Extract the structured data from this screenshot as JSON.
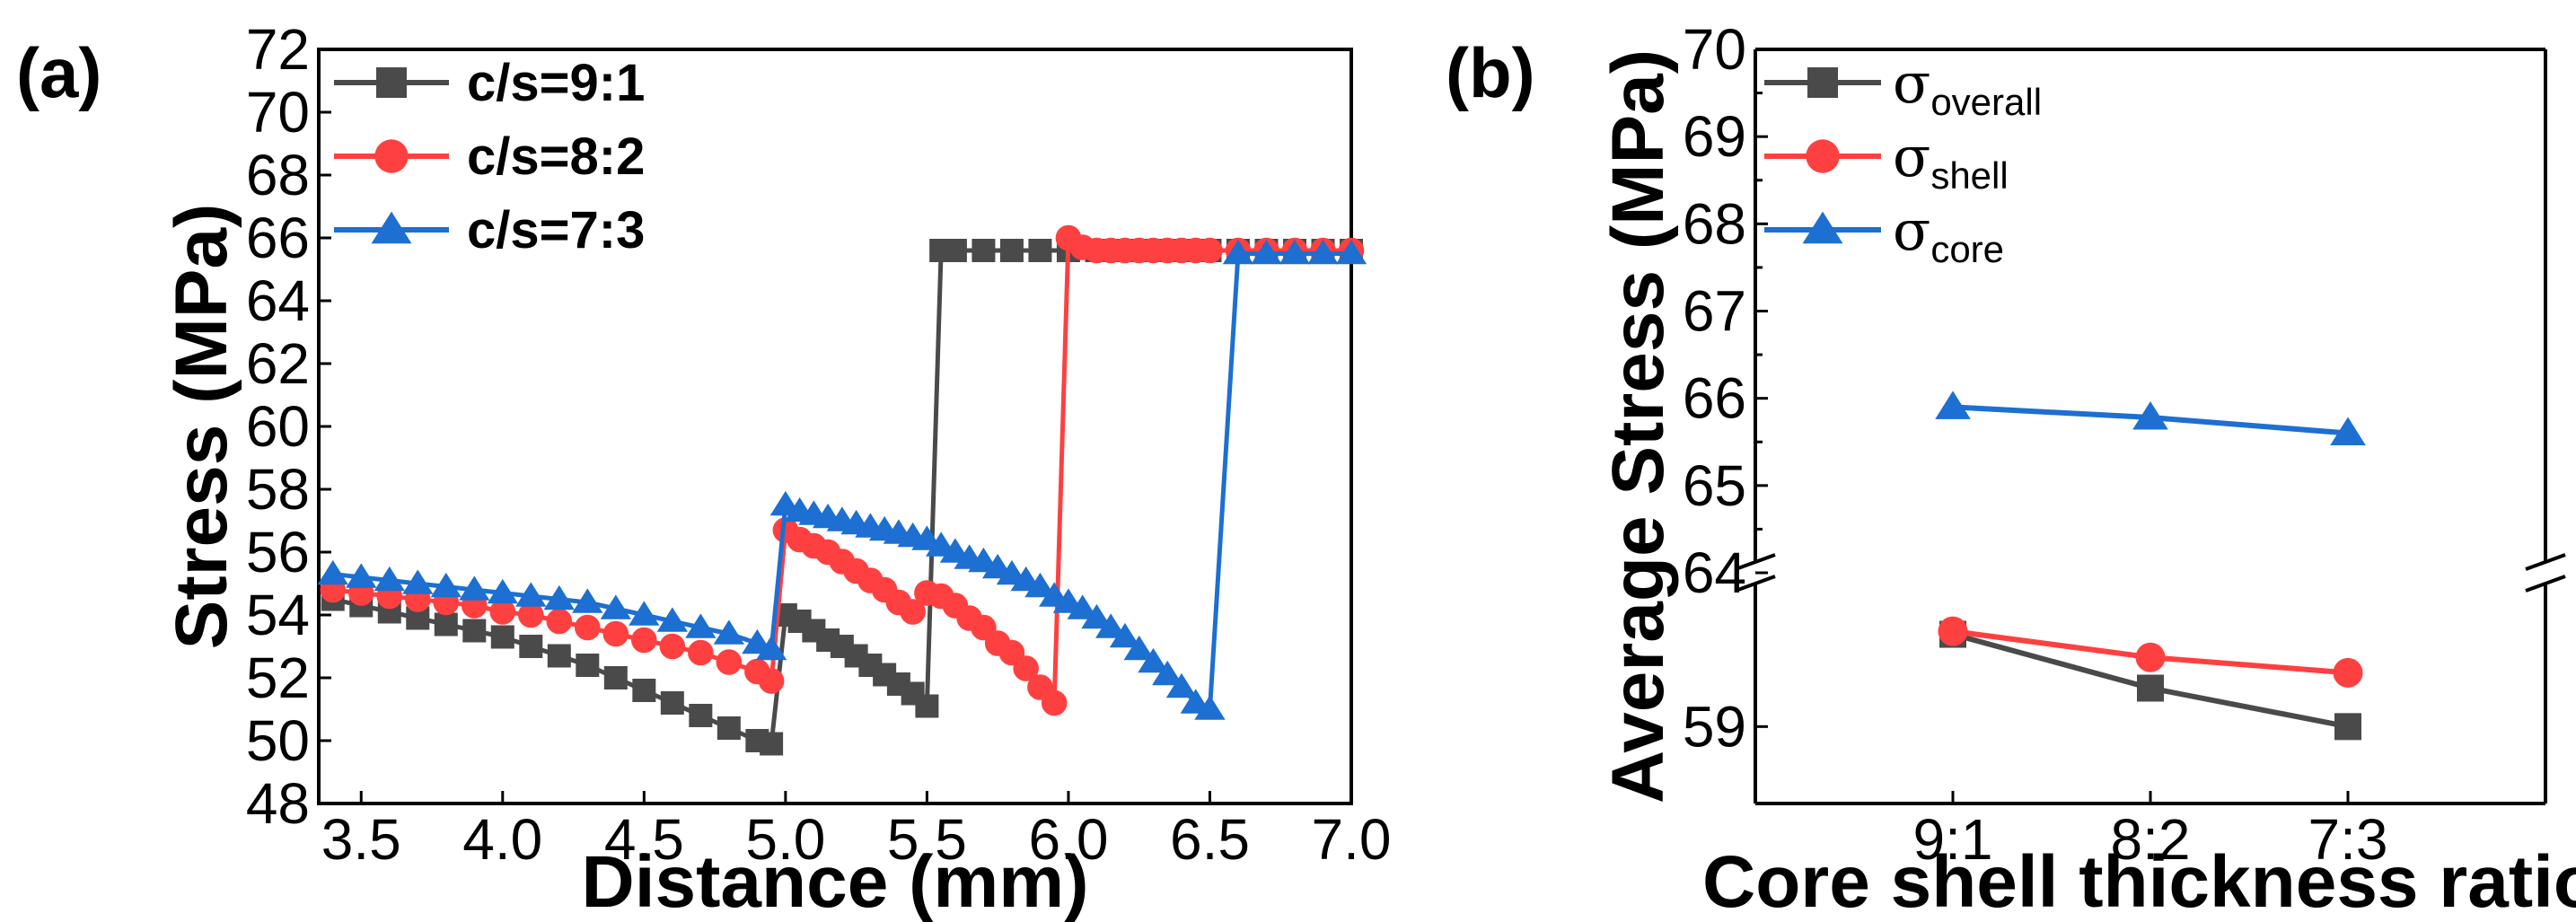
{
  "chart_data": [
    {
      "panel": "(a)",
      "type": "line",
      "xlabel": "Distance (mm)",
      "ylabel": "Stress (MPa)",
      "xlim": [
        3.35,
        7.0
      ],
      "ylim": [
        48,
        72
      ],
      "xticks": [
        "3.5",
        "4.0",
        "4.5",
        "5.0",
        "5.5",
        "6.0",
        "6.5",
        "7.0"
      ],
      "yticks": [
        "48",
        "50",
        "52",
        "54",
        "56",
        "58",
        "60",
        "62",
        "64",
        "66",
        "68",
        "70",
        "72"
      ],
      "legend": "top-left",
      "series": [
        {
          "name": "c/s=9:1",
          "color": "#4a4a4a",
          "marker": "square",
          "x": [
            3.4,
            3.5,
            3.6,
            3.7,
            3.8,
            3.9,
            4.0,
            4.1,
            4.2,
            4.3,
            4.4,
            4.5,
            4.6,
            4.7,
            4.8,
            4.9,
            4.95,
            5.0,
            5.05,
            5.1,
            5.15,
            5.2,
            5.25,
            5.3,
            5.35,
            5.4,
            5.45,
            5.5,
            5.55,
            5.6,
            5.7,
            5.8,
            5.9,
            6.0,
            6.1,
            6.2,
            6.3,
            6.4,
            6.5,
            6.6,
            6.7,
            6.8,
            6.9,
            7.0
          ],
          "y": [
            54.5,
            54.3,
            54.1,
            53.9,
            53.7,
            53.5,
            53.3,
            53.0,
            52.7,
            52.4,
            52.0,
            51.6,
            51.2,
            50.8,
            50.4,
            50.0,
            49.9,
            54.0,
            53.8,
            53.5,
            53.2,
            53.0,
            52.7,
            52.4,
            52.1,
            51.8,
            51.5,
            51.1,
            65.6,
            65.6,
            65.6,
            65.6,
            65.6,
            65.6,
            65.6,
            65.6,
            65.6,
            65.6,
            65.6,
            65.6,
            65.6,
            65.6,
            65.6,
            65.6
          ]
        },
        {
          "name": "c/s=8:2",
          "color": "#ff4040",
          "marker": "circle",
          "x": [
            3.4,
            3.5,
            3.6,
            3.7,
            3.8,
            3.9,
            4.0,
            4.1,
            4.2,
            4.3,
            4.4,
            4.5,
            4.6,
            4.7,
            4.8,
            4.9,
            4.95,
            5.0,
            5.05,
            5.1,
            5.15,
            5.2,
            5.25,
            5.3,
            5.35,
            5.4,
            5.45,
            5.5,
            5.55,
            5.6,
            5.65,
            5.7,
            5.75,
            5.8,
            5.85,
            5.9,
            5.95,
            6.0,
            6.05,
            6.1,
            6.15,
            6.2,
            6.25,
            6.3,
            6.35,
            6.4,
            6.45,
            6.5,
            6.6,
            6.7,
            6.8,
            6.9,
            7.0
          ],
          "y": [
            54.8,
            54.7,
            54.6,
            54.5,
            54.4,
            54.3,
            54.1,
            54.0,
            53.8,
            53.6,
            53.4,
            53.2,
            53.0,
            52.8,
            52.5,
            52.2,
            51.9,
            56.7,
            56.4,
            56.2,
            56.0,
            55.7,
            55.4,
            55.1,
            54.8,
            54.4,
            54.1,
            54.7,
            54.6,
            54.3,
            53.9,
            53.6,
            53.1,
            52.8,
            52.3,
            51.7,
            51.2,
            66.0,
            65.7,
            65.6,
            65.6,
            65.6,
            65.6,
            65.6,
            65.6,
            65.6,
            65.6,
            65.6,
            65.6,
            65.6,
            65.6,
            65.6,
            65.6
          ]
        },
        {
          "name": "c/s=7:3",
          "color": "#1d6fd1",
          "marker": "triangle",
          "x": [
            3.4,
            3.5,
            3.6,
            3.7,
            3.8,
            3.9,
            4.0,
            4.1,
            4.2,
            4.3,
            4.4,
            4.5,
            4.6,
            4.7,
            4.8,
            4.9,
            4.95,
            5.0,
            5.05,
            5.1,
            5.15,
            5.2,
            5.25,
            5.3,
            5.35,
            5.4,
            5.45,
            5.5,
            5.55,
            5.6,
            5.65,
            5.7,
            5.75,
            5.8,
            5.85,
            5.9,
            5.95,
            6.0,
            6.05,
            6.1,
            6.15,
            6.2,
            6.25,
            6.3,
            6.35,
            6.4,
            6.45,
            6.5,
            6.6,
            6.7,
            6.8,
            6.9,
            7.0
          ],
          "y": [
            55.3,
            55.2,
            55.1,
            55.0,
            54.9,
            54.8,
            54.7,
            54.6,
            54.5,
            54.4,
            54.2,
            54.0,
            53.8,
            53.6,
            53.4,
            53.1,
            52.9,
            57.5,
            57.3,
            57.2,
            57.1,
            57.0,
            56.9,
            56.8,
            56.7,
            56.6,
            56.5,
            56.4,
            56.2,
            56.0,
            55.8,
            55.7,
            55.5,
            55.3,
            55.1,
            54.9,
            54.6,
            54.4,
            54.2,
            53.9,
            53.6,
            53.3,
            52.9,
            52.5,
            52.1,
            51.7,
            51.2,
            51.0,
            65.5,
            65.5,
            65.5,
            65.5,
            65.5
          ]
        }
      ]
    },
    {
      "panel": "(b)",
      "type": "line",
      "xlabel": "Core shell thickness ratio",
      "ylabel": "Average Stress (MPa)",
      "categories": [
        "9:1",
        "8:2",
        "7:3"
      ],
      "ylim_lower": [
        58.5,
        60.0
      ],
      "ylim_upper": [
        64.0,
        70.0
      ],
      "yticks_lower": [
        "59"
      ],
      "yticks_upper": [
        "64",
        "65",
        "66",
        "67",
        "68",
        "69",
        "70"
      ],
      "axis_break": "between 60 and 64",
      "legend": "top-left",
      "series": [
        {
          "name": "σ",
          "sub": "overall",
          "color": "#4a4a4a",
          "marker": "square",
          "values": [
            59.6,
            59.25,
            59.0
          ]
        },
        {
          "name": "σ",
          "sub": "shell",
          "color": "#ff4040",
          "marker": "circle",
          "values": [
            59.62,
            59.45,
            59.35
          ]
        },
        {
          "name": "σ",
          "sub": "core",
          "color": "#1d6fd1",
          "marker": "triangle",
          "values": [
            65.9,
            65.78,
            65.6
          ]
        }
      ]
    }
  ]
}
